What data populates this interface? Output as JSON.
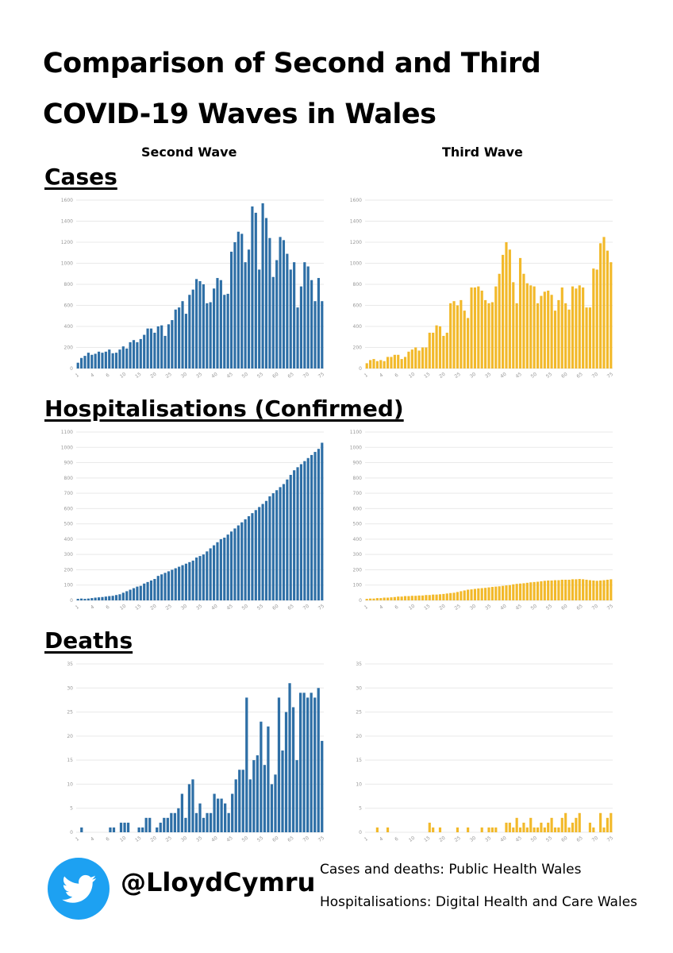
{
  "title_line1": "Comparison of Second and Third",
  "title_line2": "COVID-19 Waves in Wales",
  "column_labels": {
    "second": "Second Wave",
    "third": "Third Wave"
  },
  "sections": {
    "cases": "Cases",
    "hospitalisations": "Hospitalisations (Confirmed)",
    "deaths": "Deaths"
  },
  "footer": {
    "handle": "@LloydCymru",
    "icon": "twitter-bird-icon",
    "source_line1": "Cases and deaths: Public Health Wales",
    "source_line2": "Hospitalisations: Digital Health and Care Wales"
  },
  "colors": {
    "second_wave": "#2e6fa6",
    "third_wave": "#f2b92a",
    "twitter": "#1da1f2"
  },
  "chart_data": [
    {
      "type": "bar",
      "id": "cases_second",
      "ylim": [
        0,
        1600
      ],
      "yticks": [
        0,
        200,
        400,
        600,
        800,
        1000,
        1200,
        1400,
        1600
      ],
      "xticks": [
        "1",
        "4",
        "6",
        "10",
        "15",
        "20",
        "25",
        "30",
        "35",
        "40",
        "45",
        "50",
        "55",
        "60",
        "65",
        "70",
        "75"
      ],
      "values": [
        55,
        100,
        120,
        150,
        130,
        140,
        160,
        150,
        160,
        180,
        145,
        150,
        180,
        210,
        190,
        250,
        270,
        250,
        280,
        320,
        380,
        380,
        340,
        400,
        410,
        310,
        420,
        460,
        560,
        580,
        640,
        520,
        700,
        750,
        850,
        830,
        800,
        620,
        630,
        760,
        860,
        840,
        700,
        710,
        1110,
        1200,
        1300,
        1280,
        1010,
        1130,
        1540,
        1480,
        940,
        1570,
        1430,
        1240,
        870,
        1030,
        1250,
        1220,
        1090,
        940,
        1010,
        580,
        780,
        1010,
        970,
        840,
        640,
        860,
        640
      ],
      "color": "#2e6fa6"
    },
    {
      "type": "bar",
      "id": "cases_third",
      "ylim": [
        0,
        1600
      ],
      "yticks": [
        0,
        200,
        400,
        600,
        800,
        1000,
        1200,
        1400,
        1600
      ],
      "xticks": [
        "1",
        "4",
        "6",
        "10",
        "15",
        "20",
        "25",
        "30",
        "35",
        "40",
        "45",
        "50",
        "55",
        "60",
        "65",
        "70",
        "75"
      ],
      "values": [
        50,
        80,
        90,
        70,
        80,
        70,
        110,
        110,
        130,
        130,
        90,
        110,
        160,
        180,
        200,
        170,
        200,
        200,
        340,
        340,
        410,
        400,
        310,
        340,
        620,
        640,
        600,
        650,
        550,
        480,
        770,
        770,
        780,
        740,
        650,
        620,
        630,
        780,
        900,
        1080,
        1200,
        1130,
        820,
        620,
        1050,
        900,
        810,
        790,
        780,
        620,
        690,
        730,
        740,
        700,
        550,
        650,
        770,
        620,
        560,
        780,
        760,
        790,
        770,
        580,
        580,
        950,
        940,
        1190,
        1250,
        1120,
        1010
      ],
      "color": "#f2b92a"
    },
    {
      "type": "bar",
      "id": "hosp_second",
      "ylim": [
        0,
        1100
      ],
      "yticks": [
        0,
        100,
        200,
        300,
        400,
        500,
        600,
        700,
        800,
        900,
        1000,
        1100
      ],
      "xticks": [
        "1",
        "4",
        "6",
        "10",
        "15",
        "20",
        "25",
        "30",
        "35",
        "40",
        "45",
        "50",
        "55",
        "60",
        "65",
        "70",
        "75"
      ],
      "values": [
        10,
        12,
        10,
        12,
        15,
        18,
        20,
        22,
        25,
        28,
        30,
        35,
        40,
        50,
        60,
        70,
        80,
        90,
        95,
        110,
        120,
        130,
        140,
        160,
        170,
        180,
        190,
        200,
        210,
        220,
        230,
        240,
        250,
        260,
        280,
        290,
        300,
        320,
        340,
        360,
        380,
        400,
        410,
        430,
        450,
        470,
        490,
        510,
        530,
        550,
        570,
        590,
        610,
        630,
        650,
        680,
        700,
        720,
        740,
        760,
        790,
        820,
        850,
        870,
        890,
        910,
        930,
        950,
        970,
        990,
        1030
      ],
      "color": "#2e6fa6"
    },
    {
      "type": "bar",
      "id": "hosp_third",
      "ylim": [
        0,
        1100
      ],
      "yticks": [
        0,
        100,
        200,
        300,
        400,
        500,
        600,
        700,
        800,
        900,
        1000,
        1100
      ],
      "xticks": [
        "1",
        "4",
        "6",
        "10",
        "15",
        "20",
        "25",
        "30",
        "35",
        "40",
        "45",
        "50",
        "55",
        "60",
        "65",
        "70",
        "75"
      ],
      "values": [
        10,
        12,
        12,
        15,
        15,
        18,
        18,
        20,
        22,
        25,
        25,
        28,
        28,
        30,
        30,
        32,
        32,
        35,
        35,
        38,
        38,
        40,
        42,
        45,
        48,
        50,
        55,
        60,
        65,
        70,
        72,
        75,
        78,
        80,
        82,
        85,
        88,
        90,
        92,
        95,
        98,
        100,
        105,
        108,
        110,
        112,
        115,
        118,
        120,
        122,
        125,
        128,
        130,
        130,
        132,
        132,
        135,
        135,
        135,
        138,
        138,
        140,
        138,
        135,
        132,
        130,
        128,
        130,
        132,
        135,
        138
      ],
      "color": "#f2b92a"
    },
    {
      "type": "bar",
      "id": "deaths_second",
      "ylim": [
        0,
        35
      ],
      "yticks": [
        0,
        5,
        10,
        15,
        20,
        25,
        30,
        35
      ],
      "xticks": [
        "1",
        "4",
        "6",
        "10",
        "15",
        "20",
        "25",
        "30",
        "35",
        "40",
        "45",
        "50",
        "55",
        "60",
        "65",
        "70",
        "75"
      ],
      "values": [
        0,
        1,
        0,
        0,
        0,
        0,
        0,
        0,
        0,
        1,
        1,
        0,
        2,
        2,
        2,
        0,
        0,
        1,
        1,
        3,
        3,
        0,
        1,
        2,
        3,
        3,
        4,
        4,
        5,
        8,
        3,
        10,
        11,
        4,
        6,
        3,
        4,
        4,
        8,
        7,
        7,
        6,
        4,
        8,
        11,
        13,
        13,
        28,
        11,
        15,
        16,
        23,
        14,
        22,
        10,
        12,
        28,
        17,
        25,
        31,
        26,
        15,
        29,
        29,
        28,
        29,
        28,
        30,
        19
      ],
      "color": "#2e6fa6"
    },
    {
      "type": "bar",
      "id": "deaths_third",
      "ylim": [
        0,
        35
      ],
      "yticks": [
        0,
        5,
        10,
        15,
        20,
        25,
        30,
        35
      ],
      "xticks": [
        "1",
        "4",
        "6",
        "10",
        "15",
        "20",
        "25",
        "30",
        "35",
        "40",
        "45",
        "50",
        "55",
        "60",
        "65",
        "70",
        "75"
      ],
      "values": [
        0,
        0,
        0,
        1,
        0,
        0,
        1,
        0,
        0,
        0,
        0,
        0,
        0,
        0,
        0,
        0,
        0,
        0,
        2,
        1,
        0,
        1,
        0,
        0,
        0,
        0,
        1,
        0,
        0,
        1,
        0,
        0,
        0,
        1,
        0,
        1,
        1,
        1,
        0,
        0,
        2,
        2,
        1,
        3,
        1,
        2,
        1,
        3,
        1,
        1,
        2,
        1,
        2,
        3,
        1,
        1,
        3,
        4,
        1,
        2,
        3,
        4,
        0,
        0,
        2,
        1,
        0,
        4,
        1,
        3,
        4
      ],
      "color": "#f2b92a"
    }
  ]
}
